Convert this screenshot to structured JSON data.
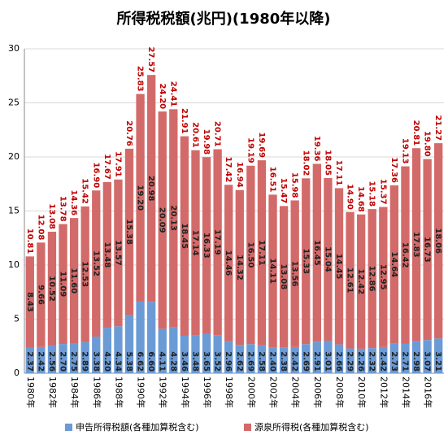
{
  "chart_data": {
    "type": "stacked_bar",
    "title": "所得税税額(兆円)(1980年以降)",
    "categories": [
      "1980年",
      null,
      "1982年",
      null,
      "1984年",
      null,
      "1986年",
      null,
      "1988年",
      null,
      "1990年",
      null,
      "1992年",
      null,
      "1994年",
      null,
      "1996年",
      null,
      "1998年",
      null,
      "2000年",
      null,
      "2002年",
      null,
      "2004年",
      null,
      "2006年",
      null,
      "2008年",
      null,
      "2010年",
      null,
      "2012年",
      null,
      "2014年",
      null,
      "2016年",
      null
    ],
    "series": [
      {
        "name": "申告所得税額(各種加算税含む)",
        "color": "#6b9bd6",
        "values": [
          2.37,
          2.42,
          2.56,
          2.7,
          2.75,
          2.89,
          3.38,
          4.2,
          4.34,
          5.38,
          6.62,
          6.6,
          4.11,
          4.28,
          3.46,
          3.48,
          3.65,
          3.52,
          2.96,
          2.62,
          2.69,
          2.58,
          2.4,
          2.38,
          2.42,
          2.69,
          2.91,
          3.01,
          2.66,
          2.29,
          2.26,
          2.32,
          2.42,
          2.73,
          2.71,
          2.98,
          3.07,
          3.21
        ]
      },
      {
        "name": "源泉所得税(各種加算税含む)",
        "color": "#d36a6a",
        "values": [
          8.43,
          9.66,
          10.52,
          11.09,
          11.6,
          12.53,
          13.52,
          13.48,
          13.57,
          15.38,
          19.2,
          20.98,
          20.09,
          20.13,
          18.45,
          17.14,
          16.33,
          17.19,
          14.46,
          14.32,
          16.5,
          17.11,
          14.11,
          13.08,
          13.56,
          15.33,
          16.45,
          15.04,
          14.45,
          12.61,
          12.42,
          12.86,
          12.95,
          14.64,
          16.42,
          17.83,
          16.73,
          18.06
        ]
      }
    ],
    "totals": [
      10.81,
      12.08,
      13.08,
      13.78,
      14.36,
      15.42,
      16.9,
      17.67,
      17.91,
      20.76,
      25.83,
      27.57,
      24.2,
      24.41,
      21.91,
      20.61,
      19.98,
      20.71,
      17.42,
      16.94,
      19.19,
      19.69,
      16.51,
      15.47,
      15.98,
      18.02,
      19.36,
      18.05,
      17.11,
      14.9,
      14.68,
      15.18,
      15.37,
      17.36,
      19.13,
      20.81,
      19.8,
      21.27
    ],
    "totals_color": "#c00000",
    "ylim": [
      0,
      30
    ],
    "yticks": [
      0,
      5,
      10,
      15,
      20,
      25,
      30
    ],
    "grid": true,
    "legend": "bottom"
  }
}
